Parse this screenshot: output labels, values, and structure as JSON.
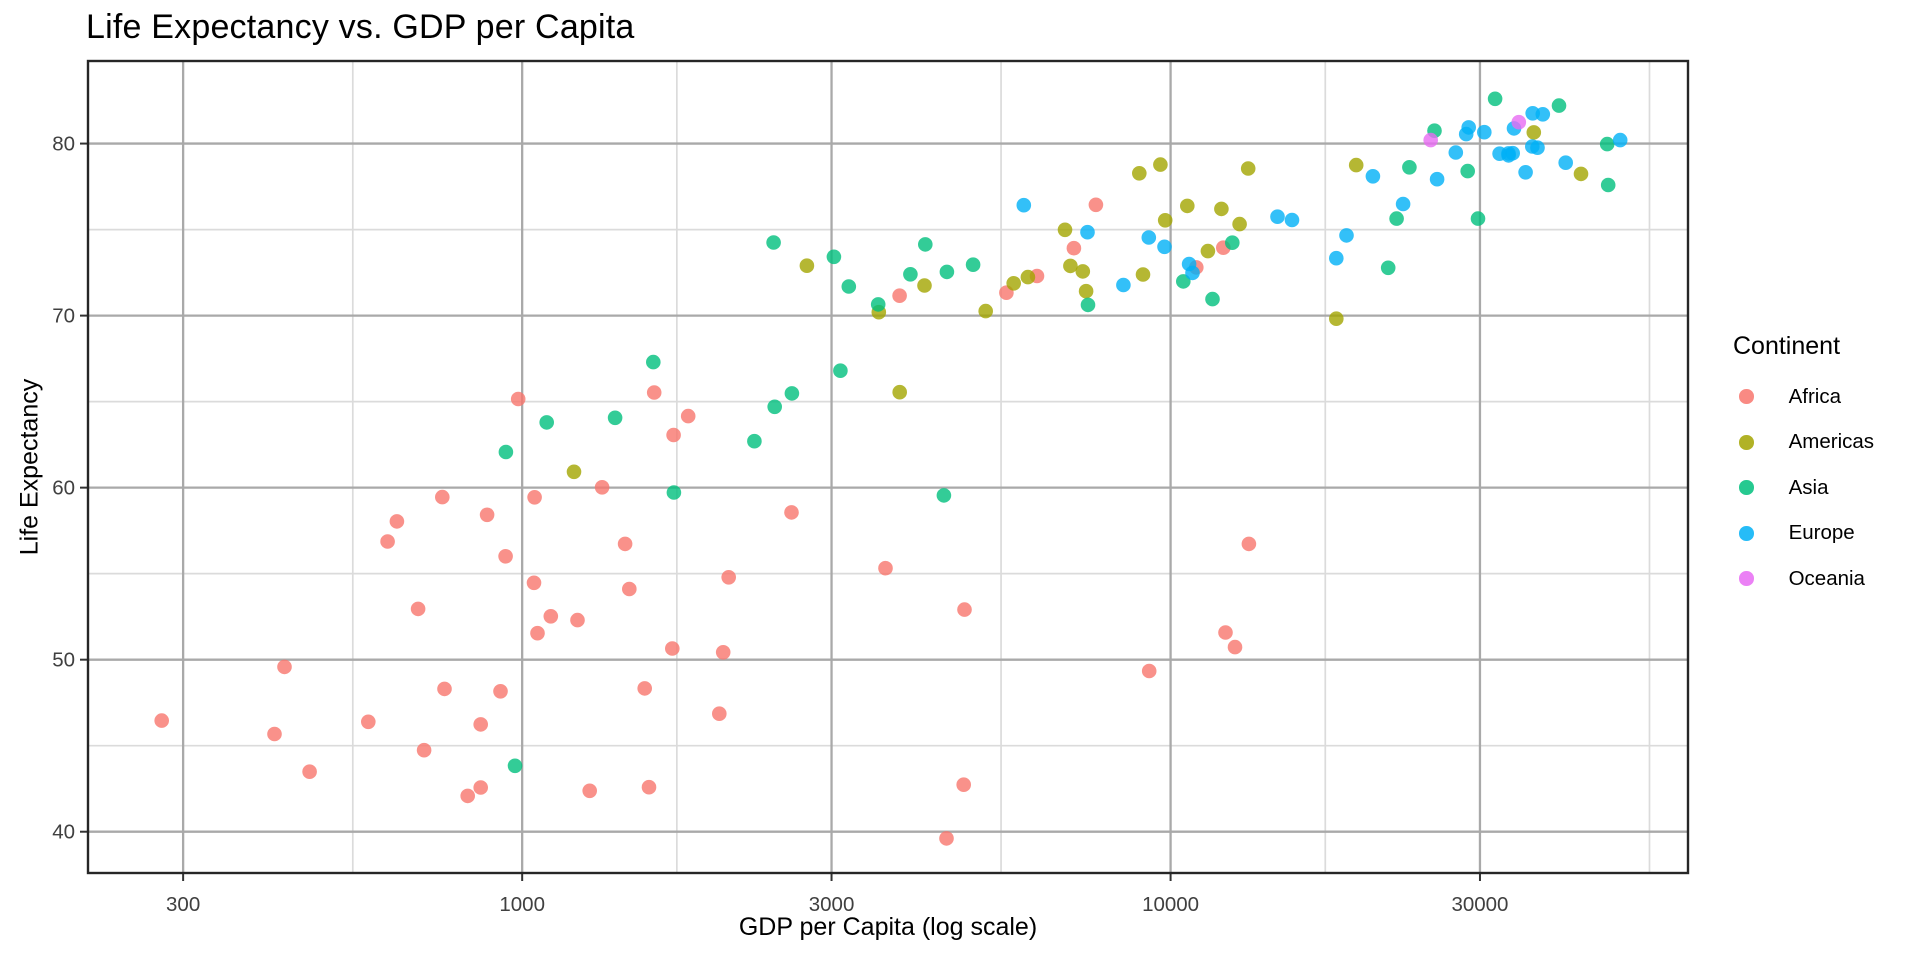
{
  "chart_data": {
    "type": "scatter",
    "title": "Life Expectancy vs. GDP per Capita",
    "xlabel": "GDP per Capita (log scale)",
    "ylabel": "Life Expectancy",
    "x_scale": "log10",
    "x_domain": [
      214,
      62800
    ],
    "y_domain": [
      37.6,
      84.8
    ],
    "x_ticks": [
      300,
      1000,
      3000,
      10000,
      30000
    ],
    "x_minor_ticks": [
      548,
      1732,
      5477,
      17321,
      54772
    ],
    "y_ticks": [
      40,
      50,
      60,
      70,
      80
    ],
    "y_minor_ticks": [
      45,
      55,
      65,
      75
    ],
    "grid": true,
    "legend": {
      "title": "Continent",
      "position": "right"
    },
    "series": [
      {
        "name": "Africa",
        "color": "#F8766D",
        "points": [
          [
            6223,
            72.3
          ],
          [
            4797,
            42.73
          ],
          [
            1441,
            56.73
          ],
          [
            12570,
            50.73
          ],
          [
            1217,
            52.3
          ],
          [
            430,
            49.58
          ],
          [
            2042,
            50.43
          ],
          [
            706,
            44.74
          ],
          [
            1704,
            50.65
          ],
          [
            986,
            65.15
          ],
          [
            278,
            46.46
          ],
          [
            3633,
            55.32
          ],
          [
            1545,
            48.33
          ],
          [
            2082,
            54.79
          ],
          [
            5581,
            71.33
          ],
          [
            12154,
            51.58
          ],
          [
            641,
            58.04
          ],
          [
            691,
            52.95
          ],
          [
            13206,
            56.73
          ],
          [
            753,
            59.45
          ],
          [
            1328,
            60.02
          ],
          [
            943,
            56.01
          ],
          [
            579,
            46.39
          ],
          [
            1463,
            54.11
          ],
          [
            1569,
            42.59
          ],
          [
            415,
            45.68
          ],
          [
            12058,
            73.95
          ],
          [
            1045,
            59.44
          ],
          [
            759,
            48.3
          ],
          [
            1043,
            54.47
          ],
          [
            1803,
            64.16
          ],
          [
            10957,
            72.8
          ],
          [
            3820,
            71.16
          ],
          [
            824,
            42.08
          ],
          [
            4811,
            52.91
          ],
          [
            620,
            56.87
          ],
          [
            2014,
            46.86
          ],
          [
            7670,
            76.44
          ],
          [
            863,
            46.24
          ],
          [
            1598,
            65.53
          ],
          [
            1712,
            63.06
          ],
          [
            863,
            42.57
          ],
          [
            926,
            48.16
          ],
          [
            9270,
            49.34
          ],
          [
            2602,
            58.56
          ],
          [
            4513,
            39.61
          ],
          [
            1107,
            52.52
          ],
          [
            883,
            58.42
          ],
          [
            7093,
            73.92
          ],
          [
            1056,
            51.54
          ],
          [
            1271,
            42.38
          ],
          [
            470,
            43.49
          ]
        ]
      },
      {
        "name": "Americas",
        "color": "#A3A500",
        "points": [
          [
            12779,
            75.32
          ],
          [
            3822,
            65.55
          ],
          [
            9066,
            72.39
          ],
          [
            36319,
            80.65
          ],
          [
            13172,
            78.55
          ],
          [
            7007,
            72.89
          ],
          [
            9645,
            78.78
          ],
          [
            8948,
            78.27
          ],
          [
            6025,
            72.24
          ],
          [
            6873,
            74.99
          ],
          [
            5728,
            71.88
          ],
          [
            5186,
            70.26
          ],
          [
            1202,
            60.92
          ],
          [
            3548,
            70.2
          ],
          [
            7321,
            72.57
          ],
          [
            11978,
            76.2
          ],
          [
            2749,
            72.9
          ],
          [
            9809,
            75.54
          ],
          [
            4173,
            71.75
          ],
          [
            7409,
            71.42
          ],
          [
            19329,
            78.75
          ],
          [
            18009,
            69.82
          ],
          [
            42952,
            78.24
          ],
          [
            10611,
            76.38
          ],
          [
            11416,
            73.75
          ]
        ]
      },
      {
        "name": "Asia",
        "color": "#00BF7D",
        "points": [
          [
            975,
            43.83
          ],
          [
            29796,
            75.64
          ],
          [
            1391,
            64.06
          ],
          [
            1714,
            59.72
          ],
          [
            4959,
            72.96
          ],
          [
            39725,
            82.21
          ],
          [
            2452,
            64.7
          ],
          [
            3541,
            70.65
          ],
          [
            11606,
            70.96
          ],
          [
            4471,
            59.55
          ],
          [
            25523,
            80.75
          ],
          [
            31656,
            82.6
          ],
          [
            4519,
            72.54
          ],
          [
            1593,
            67.3
          ],
          [
            23348,
            78.62
          ],
          [
            47307,
            77.59
          ],
          [
            10461,
            71.99
          ],
          [
            12452,
            74.24
          ],
          [
            3096,
            66.8
          ],
          [
            944,
            62.07
          ],
          [
            1091,
            63.79
          ],
          [
            22316,
            75.64
          ],
          [
            2606,
            65.48
          ],
          [
            3190,
            71.69
          ],
          [
            21655,
            72.78
          ],
          [
            47143,
            79.97
          ],
          [
            3970,
            72.4
          ],
          [
            4185,
            74.14
          ],
          [
            28718,
            78.4
          ],
          [
            7458,
            70.62
          ],
          [
            2442,
            74.25
          ],
          [
            3025,
            73.42
          ],
          [
            2281,
            62.7
          ]
        ]
      },
      {
        "name": "Europe",
        "color": "#00B0F6",
        "points": [
          [
            5937,
            76.42
          ],
          [
            36126,
            79.83
          ],
          [
            33693,
            79.44
          ],
          [
            7446,
            74.85
          ],
          [
            10681,
            73.0
          ],
          [
            14619,
            75.75
          ],
          [
            22833,
            76.49
          ],
          [
            35278,
            78.33
          ],
          [
            33207,
            79.31
          ],
          [
            30470,
            80.66
          ],
          [
            32170,
            79.41
          ],
          [
            27538,
            79.48
          ],
          [
            18009,
            73.34
          ],
          [
            36181,
            81.76
          ],
          [
            40676,
            78.89
          ],
          [
            28570,
            80.55
          ],
          [
            9254,
            74.54
          ],
          [
            36798,
            79.76
          ],
          [
            49357,
            80.2
          ],
          [
            15390,
            75.56
          ],
          [
            20510,
            78.1
          ],
          [
            10808,
            72.48
          ],
          [
            9787,
            74.0
          ],
          [
            18678,
            74.66
          ],
          [
            25768,
            77.93
          ],
          [
            28821,
            80.94
          ],
          [
            33860,
            80.88
          ],
          [
            37506,
            81.7
          ],
          [
            8458,
            71.78
          ],
          [
            33203,
            79.43
          ]
        ]
      },
      {
        "name": "Oceania",
        "color": "#E76BF3",
        "points": [
          [
            34435,
            81.24
          ],
          [
            25185,
            80.2
          ]
        ]
      }
    ]
  }
}
